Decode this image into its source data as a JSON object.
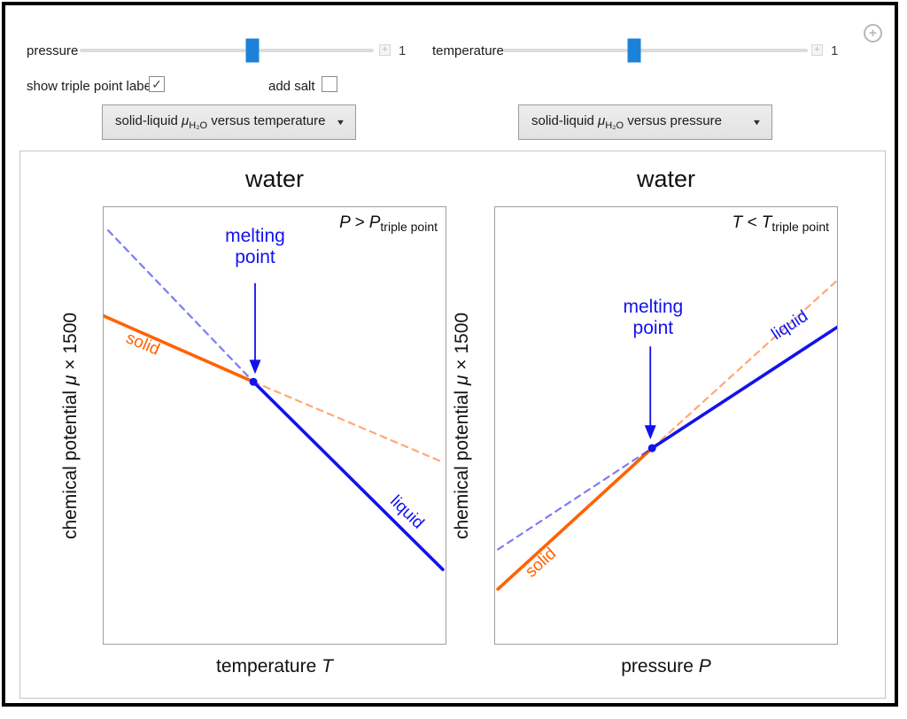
{
  "icons": {
    "expand": "+",
    "menu": "+",
    "dropdown_arrow": "▼",
    "check": "✓"
  },
  "controls": {
    "sliders": [
      {
        "label": "pressure",
        "value": "1",
        "fraction": 0.587
      },
      {
        "label": "temperature",
        "value": "1",
        "fraction": 0.43
      }
    ],
    "checkboxes": [
      {
        "label": "show triple point labels",
        "checked": true
      },
      {
        "label": "add salt",
        "checked": false
      }
    ],
    "dropdowns": [
      {
        "pre": "solid-liquid ",
        "mu": "μ",
        "sub": "H₂O",
        "post": " versus temperature"
      },
      {
        "pre": "solid-liquid ",
        "mu": "μ",
        "sub": "H₂O",
        "post": " versus pressure"
      }
    ]
  },
  "chart_data": [
    {
      "type": "line",
      "title": "water",
      "annotation": {
        "pre": "P > P",
        "sub": "triple point"
      },
      "xlabel": {
        "text": "temperature ",
        "var": "T"
      },
      "ylabel": {
        "pre": "chemical potential ",
        "var": "μ",
        "post": " × 1500"
      },
      "axes": {
        "ticks": "none",
        "frame": true,
        "x_range_normalized": [
          0,
          1
        ],
        "y_range_normalized": [
          0,
          1
        ]
      },
      "colors": {
        "solid": "#FF6200",
        "liquid": "#1212EE"
      },
      "labels": {
        "solid": "solid",
        "liquid": "liquid",
        "melting_point": [
          "melting",
          "point"
        ]
      },
      "series": [
        {
          "name": "solid stable branch",
          "phase": "solid",
          "dash": false,
          "points": [
            [
              0.0,
              0.751
            ],
            [
              0.438,
              0.6
            ]
          ]
        },
        {
          "name": "solid metastable extension",
          "phase": "solid",
          "dash": true,
          "points": [
            [
              0.438,
              0.6
            ],
            [
              0.992,
              0.416
            ]
          ]
        },
        {
          "name": "liquid metastable extension",
          "phase": "liquid",
          "dash": true,
          "points": [
            [
              0.013,
              0.947
            ],
            [
              0.438,
              0.6
            ]
          ]
        },
        {
          "name": "liquid stable branch",
          "phase": "liquid",
          "dash": false,
          "points": [
            [
              0.438,
              0.6
            ],
            [
              0.992,
              0.17
            ]
          ]
        }
      ],
      "melting_point": [
        0.438,
        0.6
      ],
      "arrow": {
        "x": 0.443,
        "y_from": 0.826,
        "y_to": 0.618
      },
      "label_pos": {
        "solid": {
          "x": 0.115,
          "y": 0.315,
          "rot": 23
        },
        "liquid": {
          "x": 0.885,
          "y": 0.7,
          "rot": 44
        },
        "melting": {
          "x": 0.443,
          "y": 0.043
        }
      }
    },
    {
      "type": "line",
      "title": "water",
      "annotation": {
        "pre": "T < T",
        "sub": "triple point"
      },
      "xlabel": {
        "text": "pressure ",
        "var": "P"
      },
      "ylabel": {
        "pre": "chemical potential ",
        "var": "μ",
        "post": " × 1500"
      },
      "axes": {
        "ticks": "none",
        "frame": true,
        "x_range_normalized": [
          0,
          1
        ],
        "y_range_normalized": [
          0,
          1
        ]
      },
      "colors": {
        "solid": "#FF6200",
        "liquid": "#1212EE"
      },
      "labels": {
        "solid": "solid",
        "liquid": "liquid",
        "melting_point": [
          "melting",
          "point"
        ]
      },
      "series": [
        {
          "name": "solid stable branch",
          "phase": "solid",
          "dash": false,
          "points": [
            [
              0.008,
              0.125
            ],
            [
              0.459,
              0.448
            ]
          ]
        },
        {
          "name": "solid metastable extension",
          "phase": "solid",
          "dash": true,
          "points": [
            [
              0.459,
              0.448
            ],
            [
              1.0,
              0.832
            ]
          ]
        },
        {
          "name": "liquid metastable extension",
          "phase": "liquid",
          "dash": true,
          "points": [
            [
              0.008,
              0.216
            ],
            [
              0.459,
              0.448
            ]
          ]
        },
        {
          "name": "liquid stable branch",
          "phase": "liquid",
          "dash": false,
          "points": [
            [
              0.459,
              0.448
            ],
            [
              1.0,
              0.725
            ]
          ]
        }
      ],
      "melting_point": [
        0.459,
        0.448
      ],
      "arrow": {
        "x": 0.454,
        "y_from": 0.681,
        "y_to": 0.468
      },
      "label_pos": {
        "solid": {
          "x": 0.135,
          "y": 0.815,
          "rot": -42
        },
        "liquid": {
          "x": 0.862,
          "y": 0.272,
          "rot": -33
        },
        "melting": {
          "x": 0.462,
          "y": 0.205
        }
      }
    }
  ]
}
